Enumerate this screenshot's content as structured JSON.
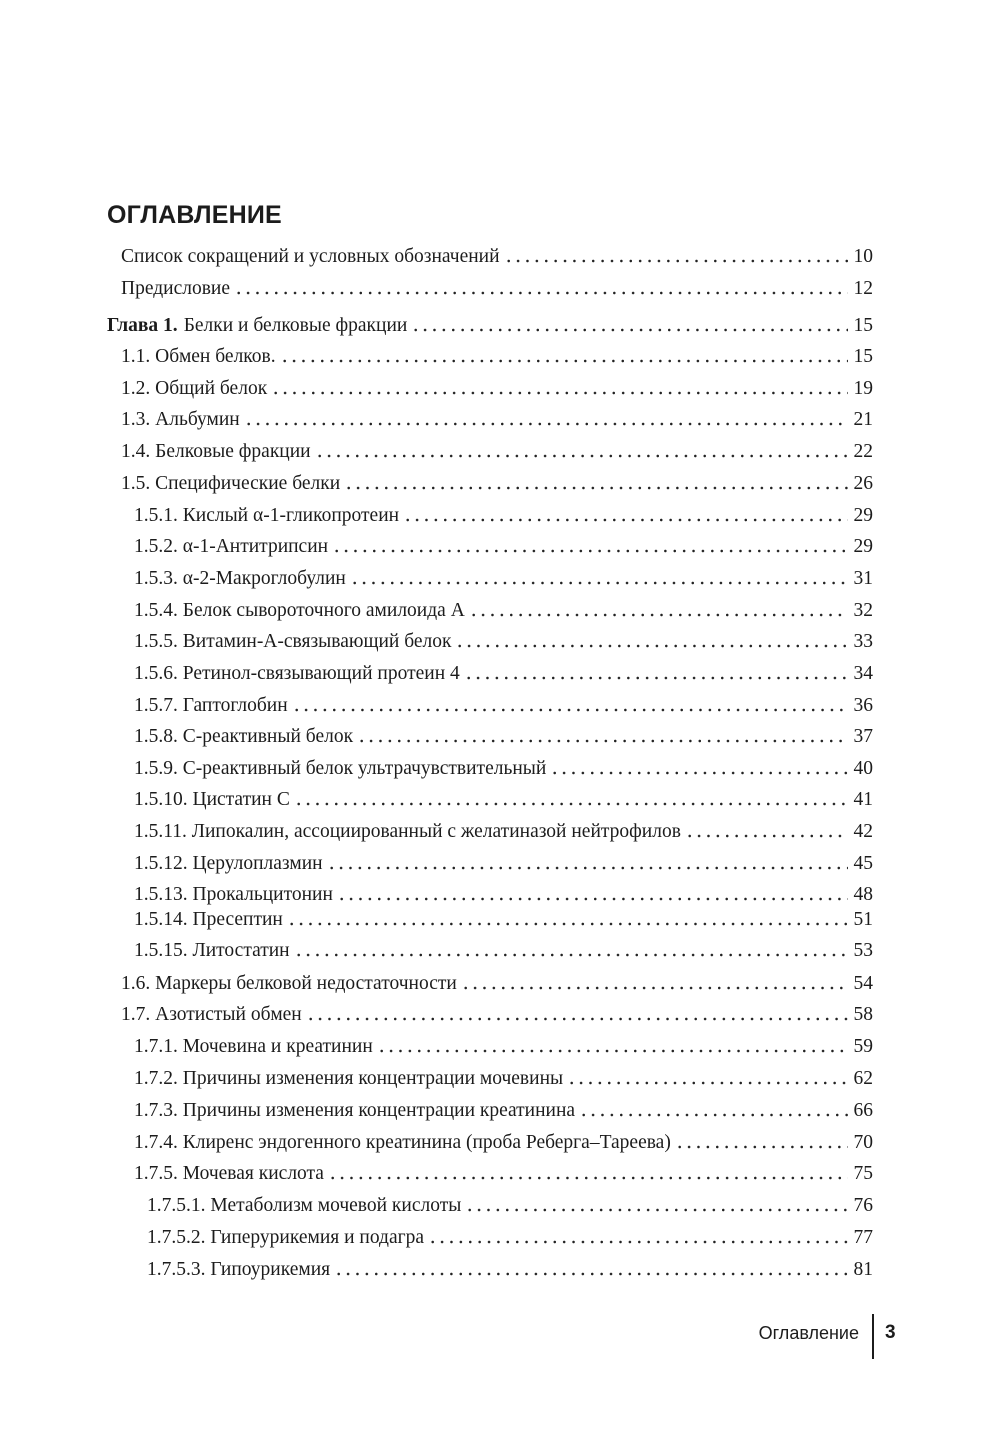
{
  "header": {
    "title": "ОГЛАВЛЕНИЕ"
  },
  "front_matter": [
    {
      "title": "Список сокращений и условных обозначений",
      "page": "10"
    },
    {
      "title": "Предисловие",
      "page": "12"
    }
  ],
  "chapters": [
    {
      "label": "Глава 1.",
      "title": "Белки и белковые фракции",
      "page": "15",
      "sections": [
        {
          "title": "1.1. Обмен белков.",
          "page": "15"
        },
        {
          "title": "1.2. Общий белок",
          "page": "19"
        },
        {
          "title": "1.3. Альбумин",
          "page": "21"
        },
        {
          "title": "1.4. Белковые фракции",
          "page": "22"
        },
        {
          "title": "1.5. Специфические белки",
          "page": "26",
          "subsections": [
            {
              "title": "1.5.1. Кислый α-1-гликопротеин",
              "page": "29"
            },
            {
              "title": "1.5.2. α-1-Антитрипсин",
              "page": "29"
            },
            {
              "title": "1.5.3. α-2-Макроглобулин",
              "page": "31"
            },
            {
              "title": "1.5.4. Белок сывороточного амилоида А",
              "page": "32"
            },
            {
              "title": "1.5.5. Витамин-А-связывающий белок",
              "page": "33"
            },
            {
              "title": "1.5.6. Ретинол-связывающий протеин 4",
              "page": "34"
            },
            {
              "title": "1.5.7. Гаптоглобин",
              "page": "36"
            },
            {
              "title": "1.5.8. С-реактивный белок",
              "page": "37"
            },
            {
              "title": "1.5.9. С-реактивный белок ультрачувствительный",
              "page": "40"
            },
            {
              "title": "1.5.10. Цистатин С",
              "page": "41"
            },
            {
              "title": "1.5.11. Липокалин, ассоциированный с желатиназой нейтрофилов",
              "page": "42"
            },
            {
              "title": "1.5.12. Церулоплазмин",
              "page": "45"
            },
            {
              "title": "1.5.13. Прокальцитонин",
              "page": "48"
            },
            {
              "title": "1.5.14. Пресептин",
              "page": "51"
            },
            {
              "title": "1.5.15. Литостатин",
              "page": "53"
            }
          ]
        },
        {
          "title": "1.6. Маркеры белковой недостаточности",
          "page": "54"
        },
        {
          "title": "1.7. Азотистый обмен",
          "page": "58",
          "subsections": [
            {
              "title": "1.7.1. Мочевина и креатинин",
              "page": "59"
            },
            {
              "title": "1.7.2. Причины изменения концентрации мочевины",
              "page": "62"
            },
            {
              "title": "1.7.3. Причины изменения концентрации креатинина",
              "page": "66"
            },
            {
              "title": "1.7.4. Клиренс эндогенного креатинина (проба Реберга–Тареева)",
              "page": "70"
            },
            {
              "title": "1.7.5. Мочевая кислота",
              "page": "75",
              "subsections": [
                {
                  "title": "1.7.5.1. Метаболизм мочевой кислоты",
                  "page": "76"
                },
                {
                  "title": "1.7.5.2. Гиперурикемия и подагра",
                  "page": "77"
                },
                {
                  "title": "1.7.5.3. Гипоурикемия",
                  "page": "81"
                }
              ]
            }
          ]
        }
      ]
    }
  ],
  "footer": {
    "section": "Оглавление",
    "page_number": "3"
  }
}
